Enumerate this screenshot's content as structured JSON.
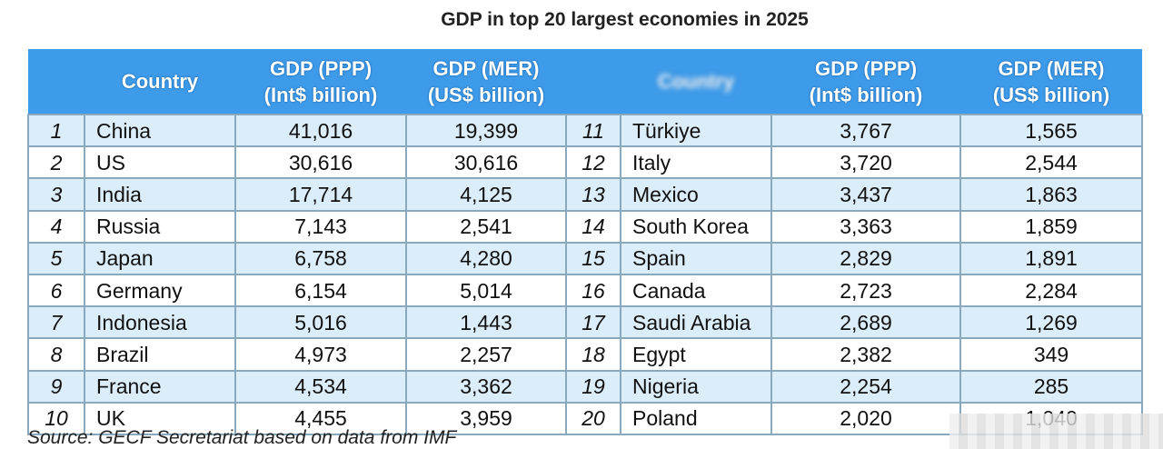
{
  "chart_data": {
    "type": "table",
    "title": "GDP in top 20 largest economies in 2025",
    "columns": [
      "",
      "Country",
      "GDP (PPP) (Int$ billion)",
      "GDP (MER) (US$ billion)"
    ],
    "headers": {
      "country": "Country",
      "ppp_line1": "GDP (PPP)",
      "ppp_line2": "(Int$ billion)",
      "mer_line1": "GDP (MER)",
      "mer_line2": "(US$ billion)"
    },
    "rows": [
      {
        "rank": "1",
        "country": "China",
        "ppp": "41,016",
        "mer": "19,399"
      },
      {
        "rank": "2",
        "country": "US",
        "ppp": "30,616",
        "mer": "30,616"
      },
      {
        "rank": "3",
        "country": "India",
        "ppp": "17,714",
        "mer": "4,125"
      },
      {
        "rank": "4",
        "country": "Russia",
        "ppp": "7,143",
        "mer": "2,541"
      },
      {
        "rank": "5",
        "country": "Japan",
        "ppp": "6,758",
        "mer": "4,280"
      },
      {
        "rank": "6",
        "country": "Germany",
        "ppp": "6,154",
        "mer": "5,014"
      },
      {
        "rank": "7",
        "country": "Indonesia",
        "ppp": "5,016",
        "mer": "1,443"
      },
      {
        "rank": "8",
        "country": "Brazil",
        "ppp": "4,973",
        "mer": "2,257"
      },
      {
        "rank": "9",
        "country": "France",
        "ppp": "4,534",
        "mer": "3,362"
      },
      {
        "rank": "10",
        "country": "UK",
        "ppp": "4,455",
        "mer": "3,959"
      },
      {
        "rank": "11",
        "country": "Türkiye",
        "ppp": "3,767",
        "mer": "1,565"
      },
      {
        "rank": "12",
        "country": "Italy",
        "ppp": "3,720",
        "mer": "2,544"
      },
      {
        "rank": "13",
        "country": "Mexico",
        "ppp": "3,437",
        "mer": "1,863"
      },
      {
        "rank": "14",
        "country": "South Korea",
        "ppp": "3,363",
        "mer": "1,859"
      },
      {
        "rank": "15",
        "country": "Spain",
        "ppp": "2,829",
        "mer": "1,891"
      },
      {
        "rank": "16",
        "country": "Canada",
        "ppp": "2,723",
        "mer": "2,284"
      },
      {
        "rank": "17",
        "country": "Saudi Arabia",
        "ppp": "2,689",
        "mer": "1,269"
      },
      {
        "rank": "18",
        "country": "Egypt",
        "ppp": "2,382",
        "mer": "349"
      },
      {
        "rank": "19",
        "country": "Nigeria",
        "ppp": "2,254",
        "mer": "285"
      },
      {
        "rank": "20",
        "country": "Poland",
        "ppp": "2,020",
        "mer": "1,040"
      }
    ],
    "source": "Source: GECF Secretariat based on data from IMF",
    "colors": {
      "header": "#3d9be9",
      "row_alt": "#dcedfa",
      "border": "#8aa9bd"
    }
  }
}
